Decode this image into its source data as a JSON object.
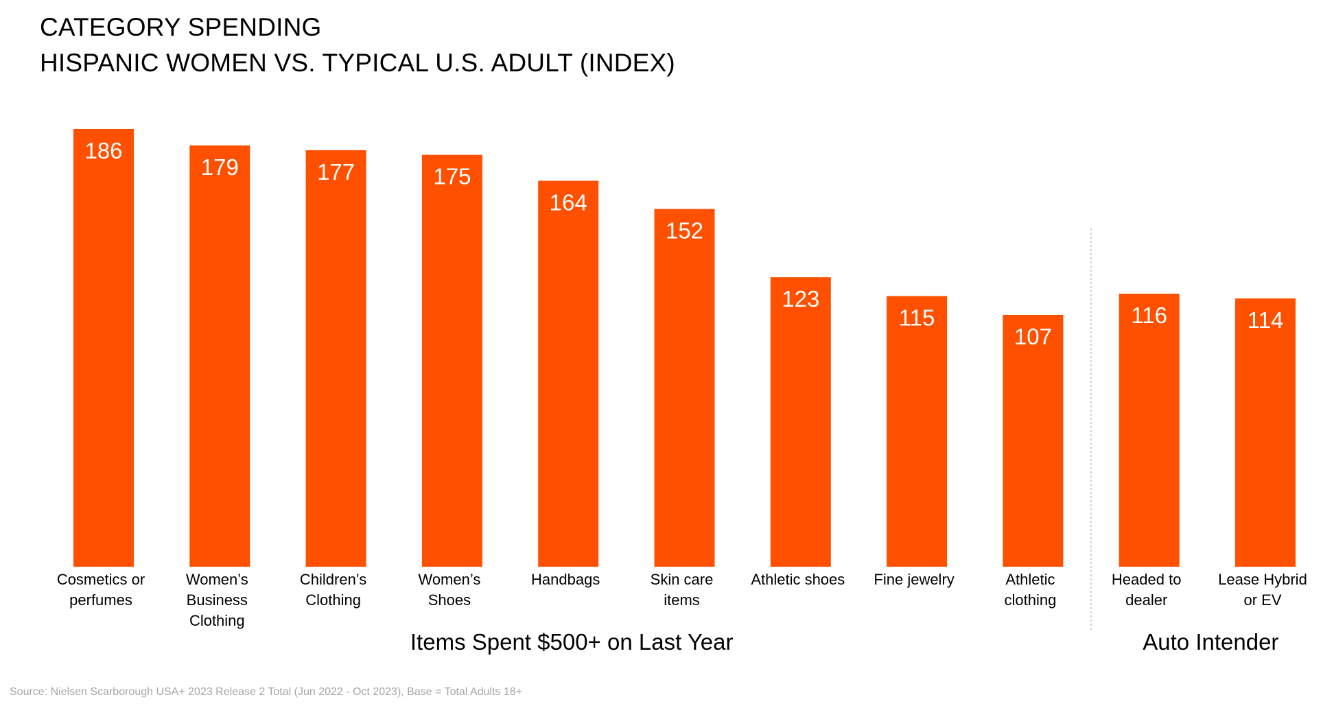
{
  "chart_data": {
    "type": "bar",
    "title": [
      "CATEGORY SPENDING",
      "HISPANIC WOMEN VS. TYPICAL U.S. ADULT (INDEX)"
    ],
    "categories": [
      [
        "Cosmetics or",
        "perfumes"
      ],
      [
        "Women’s",
        "Business",
        "Clothing"
      ],
      [
        "Children’s",
        "Clothing"
      ],
      [
        "Women’s",
        "Shoes"
      ],
      [
        "Handbags"
      ],
      [
        "Skin care",
        "items"
      ],
      [
        "Athletic shoes"
      ],
      [
        "Fine jewelry"
      ],
      [
        "Athletic",
        "clothing"
      ],
      [
        "Headed to",
        "dealer"
      ],
      [
        "Lease Hybrid",
        "or EV"
      ]
    ],
    "values": [
      186,
      179,
      177,
      175,
      164,
      152,
      123,
      115,
      107,
      116,
      114
    ],
    "groups": [
      {
        "label": "Items Spent $500+ on Last Year",
        "start": 0,
        "end": 8
      },
      {
        "label": "Auto Intender",
        "start": 9,
        "end": 10
      }
    ],
    "ylim": [
      0,
      186
    ],
    "grid": false,
    "legend": "none",
    "bar_color": "#FF5000",
    "separator_color": "#bfbfbf"
  },
  "source_note": "Source: Nielsen Scarborough USA+ 2023 Release 2 Total (Jun 2022 - Oct 2023), Base = Total Adults 18+"
}
